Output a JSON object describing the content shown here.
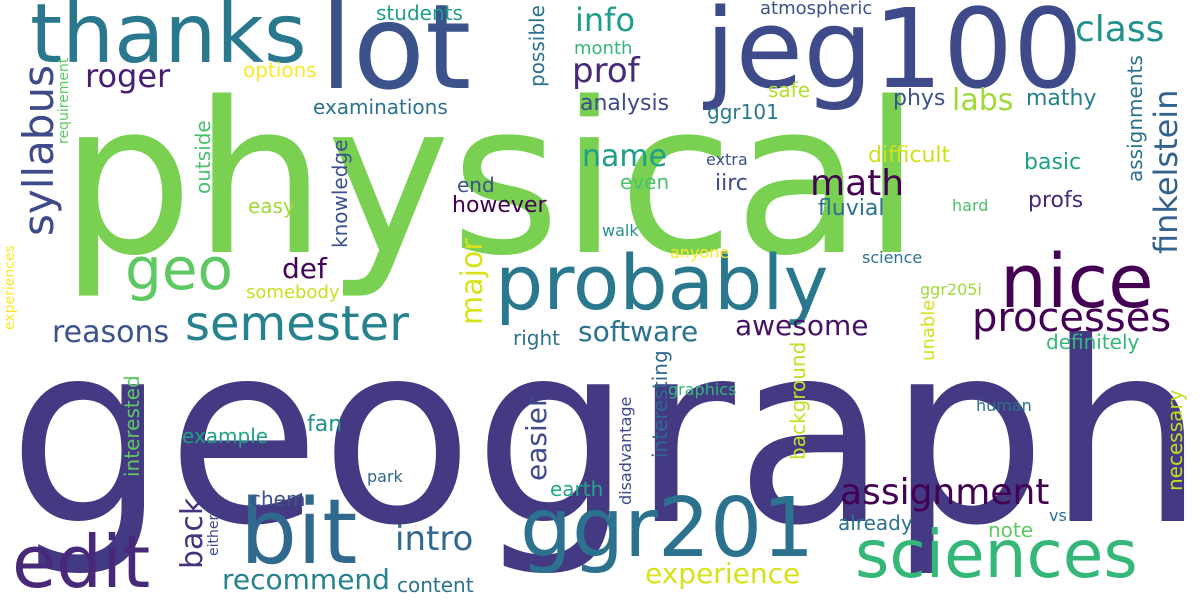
{
  "words": [
    {
      "text": "geography",
      "color": "#443983"
    },
    {
      "text": "physical",
      "color": "#7ad151"
    },
    {
      "text": "lot",
      "color": "#3b528b"
    },
    {
      "text": "jeg100",
      "color": "#3e4a89"
    },
    {
      "text": "thanks",
      "color": "#2a788e"
    },
    {
      "text": "probably",
      "color": "#2a788e"
    },
    {
      "text": "nice",
      "color": "#440154"
    },
    {
      "text": "bit",
      "color": "#31688e"
    },
    {
      "text": "ggr201",
      "color": "#2c728e"
    },
    {
      "text": "sciences",
      "color": "#35b779"
    },
    {
      "text": "edit",
      "color": "#482878"
    },
    {
      "text": "geo",
      "color": "#5ec962"
    },
    {
      "text": "semester",
      "color": "#26828e"
    },
    {
      "text": "syllabus",
      "color": "#3e4a89"
    },
    {
      "text": "processes",
      "color": "#440154"
    },
    {
      "text": "assignment",
      "color": "#440154"
    },
    {
      "text": "math",
      "color": "#440154"
    },
    {
      "text": "info",
      "color": "#1f9e89"
    },
    {
      "text": "prof",
      "color": "#482878"
    },
    {
      "text": "class",
      "color": "#21918c"
    },
    {
      "text": "roger",
      "color": "#481f70"
    },
    {
      "text": "labs",
      "color": "#a0da39"
    },
    {
      "text": "name",
      "color": "#1f9e89"
    },
    {
      "text": "major",
      "color": "#d8e219"
    },
    {
      "text": "finkelstein",
      "color": "#33638d"
    },
    {
      "text": "intro",
      "color": "#31688e"
    },
    {
      "text": "back",
      "color": "#46327e"
    },
    {
      "text": "awesome",
      "color": "#471365"
    },
    {
      "text": "software",
      "color": "#2c728e"
    },
    {
      "text": "reasons",
      "color": "#3b528b"
    },
    {
      "text": "recommend",
      "color": "#26828e"
    },
    {
      "text": "experience",
      "color": "#d8e219"
    },
    {
      "text": "easier",
      "color": "#3e4a89"
    },
    {
      "text": "def",
      "color": "#450457"
    },
    {
      "text": "phys",
      "color": "#3b528b"
    },
    {
      "text": "mathy",
      "color": "#277f8e"
    },
    {
      "text": "difficult",
      "color": "#d0e11c"
    },
    {
      "text": "basic",
      "color": "#1fa187"
    },
    {
      "text": "profs",
      "color": "#482878"
    },
    {
      "text": "fluvial",
      "color": "#2c728e"
    },
    {
      "text": "however",
      "color": "#440154"
    },
    {
      "text": "iirc",
      "color": "#3e4a89"
    },
    {
      "text": "end",
      "color": "#3b528b"
    },
    {
      "text": "even",
      "color": "#4ac16d"
    },
    {
      "text": "analysis",
      "color": "#3e4a89"
    },
    {
      "text": "ggr101",
      "color": "#2a788e"
    },
    {
      "text": "safe",
      "color": "#b5de2b"
    },
    {
      "text": "options",
      "color": "#fde725"
    },
    {
      "text": "examinations",
      "color": "#2c728e"
    },
    {
      "text": "students",
      "color": "#1f9e89"
    },
    {
      "text": "month",
      "color": "#35b779"
    },
    {
      "text": "atmospheric",
      "color": "#3b528b"
    },
    {
      "text": "possible",
      "color": "#2c728e"
    },
    {
      "text": "assignments",
      "color": "#2c728e"
    },
    {
      "text": "knowledge",
      "color": "#3b528b"
    },
    {
      "text": "outside",
      "color": "#4ac16d"
    },
    {
      "text": "easy",
      "color": "#9fda3a"
    },
    {
      "text": "somebody",
      "color": "#c8e020"
    },
    {
      "text": "requirement",
      "color": "#5ec962"
    },
    {
      "text": "experiences",
      "color": "#fde725"
    },
    {
      "text": "definitely",
      "color": "#35b779"
    },
    {
      "text": "right",
      "color": "#2c728e"
    },
    {
      "text": "background",
      "color": "#c2df23"
    },
    {
      "text": "unable",
      "color": "#d2e21b"
    },
    {
      "text": "interested",
      "color": "#5ec962"
    },
    {
      "text": "fan",
      "color": "#21918c"
    },
    {
      "text": "example",
      "color": "#1fa187"
    },
    {
      "text": "chem",
      "color": "#3b528b"
    },
    {
      "text": "park",
      "color": "#31688e"
    },
    {
      "text": "earth",
      "color": "#22a884"
    },
    {
      "text": "disadvantage",
      "color": "#3e4a89"
    },
    {
      "text": "interesting",
      "color": "#31688e"
    },
    {
      "text": "graphics",
      "color": "#35b779"
    },
    {
      "text": "human",
      "color": "#2c728e"
    },
    {
      "text": "necessary",
      "color": "#c2df23"
    },
    {
      "text": "already",
      "color": "#2c728e"
    },
    {
      "text": "vs",
      "color": "#2c728e"
    },
    {
      "text": "note",
      "color": "#5ec962"
    },
    {
      "text": "content",
      "color": "#2c728e"
    },
    {
      "text": "either",
      "color": "#3e4a89"
    },
    {
      "text": "extra",
      "color": "#3b528b"
    },
    {
      "text": "walk",
      "color": "#21918c"
    },
    {
      "text": "anyone",
      "color": "#fde725"
    },
    {
      "text": "science",
      "color": "#2c728e"
    },
    {
      "text": "ggr205i",
      "color": "#a0da39"
    },
    {
      "text": "hard",
      "color": "#4ac16d"
    }
  ]
}
